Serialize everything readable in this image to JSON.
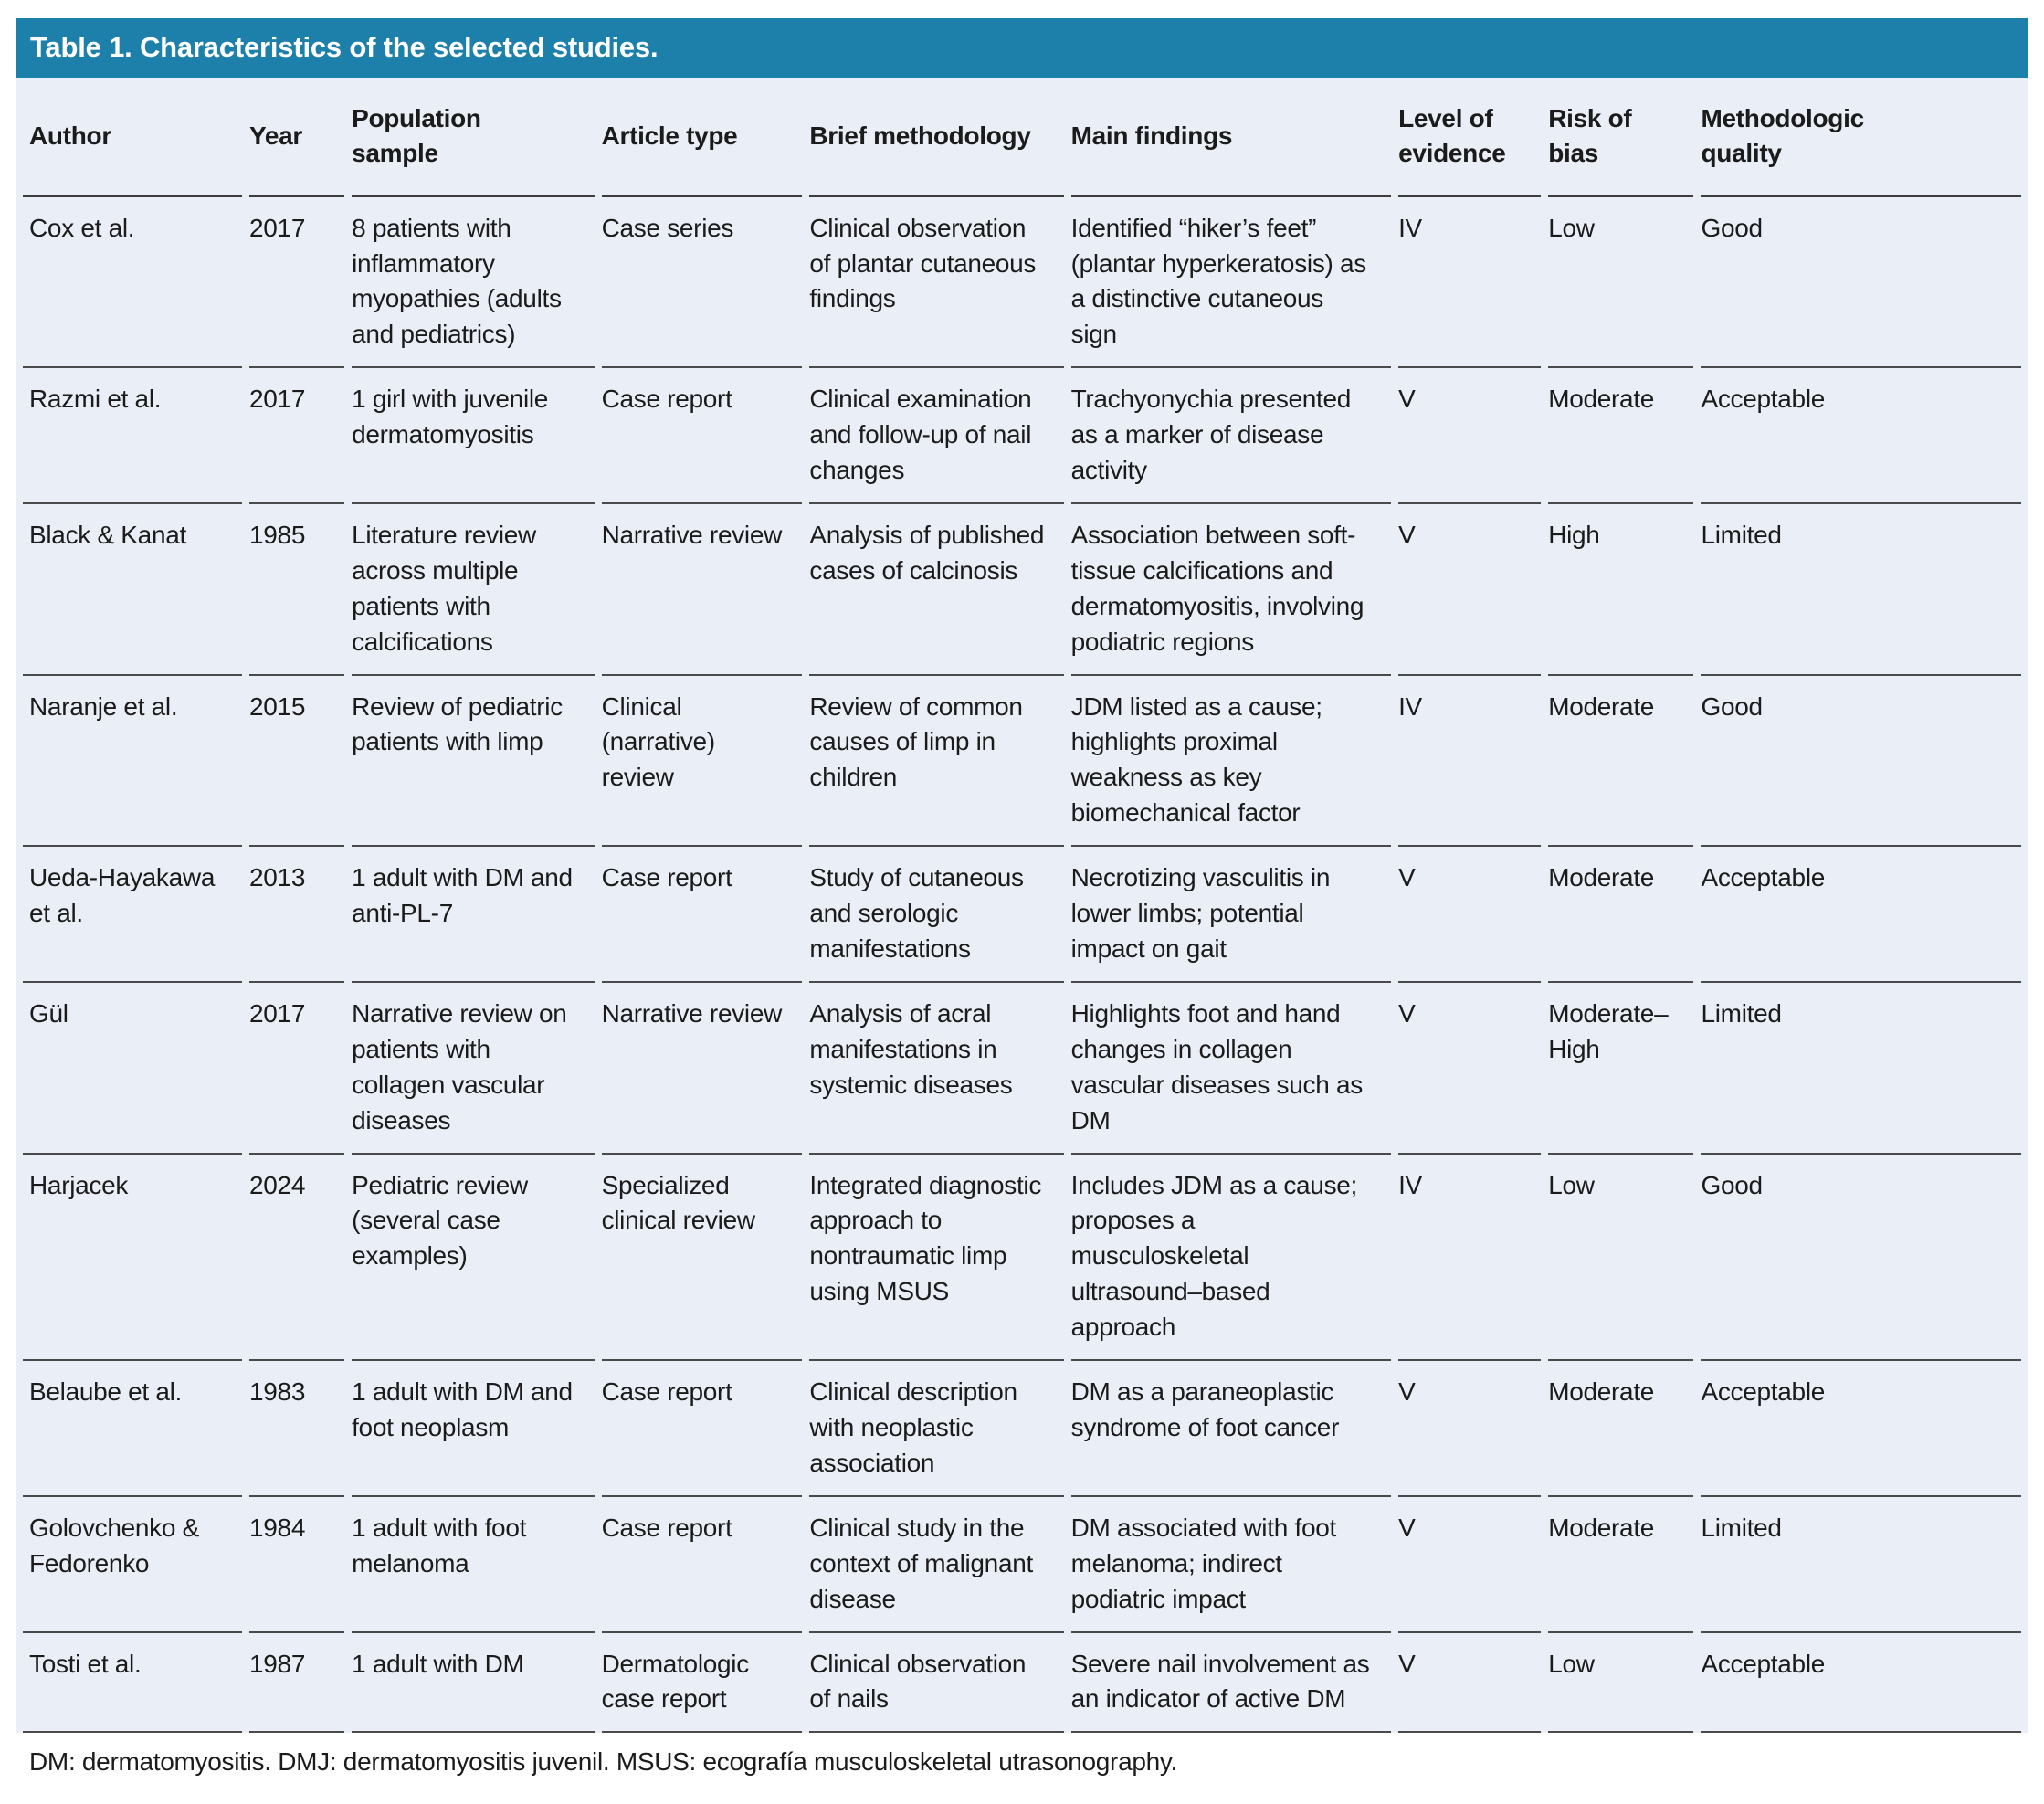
{
  "title": "Table 1. Characteristics of the selected studies.",
  "colors": {
    "title_bar": "#1c80aa",
    "row_background": "#eaeef6",
    "separator_line": "#4a4a4a",
    "header_separator_line": "#3d3d3d",
    "text": "#1b1b1b",
    "title_text": "#ffffff"
  },
  "table": {
    "columns": [
      {
        "key": "author",
        "label": "Author"
      },
      {
        "key": "year",
        "label": "Year"
      },
      {
        "key": "population",
        "label": "Population sample"
      },
      {
        "key": "article_type",
        "label": "Article type"
      },
      {
        "key": "methodology",
        "label": "Brief methodology"
      },
      {
        "key": "findings",
        "label": "Main findings"
      },
      {
        "key": "evidence",
        "label": "Level of evidence"
      },
      {
        "key": "bias",
        "label": "Risk of bias"
      },
      {
        "key": "quality",
        "label": "Methodologic quality"
      }
    ],
    "rows": [
      {
        "author": "Cox et al.",
        "year": "2017",
        "population": "8 patients with inflammatory myopathies (adults and pediatrics)",
        "article_type": "Case series",
        "methodology": "Clinical observation of plantar cutaneous findings",
        "findings": "Identified “hiker’s feet” (plantar hyperkeratosis) as a distinctive cutaneous sign",
        "evidence": "IV",
        "bias": "Low",
        "quality": "Good"
      },
      {
        "author": "Razmi et al.",
        "year": "2017",
        "population": "1 girl with juvenile dermatomyositis",
        "article_type": "Case report",
        "methodology": "Clinical examination and follow-up of nail changes",
        "findings": "Trachyonychia presented as a marker of disease activity",
        "evidence": "V",
        "bias": "Moderate",
        "quality": "Acceptable"
      },
      {
        "author": "Black & Kanat",
        "year": "1985",
        "population": "Literature review across multiple patients with calcifications",
        "article_type": "Narrative review",
        "methodology": "Analysis of published cases of calcinosis",
        "findings": "Association between soft-tissue calcifications and dermatomyositis, involving podiatric regions",
        "evidence": "V",
        "bias": "High",
        "quality": "Limited"
      },
      {
        "author": "Naranje et al.",
        "year": "2015",
        "population": "Review of pediatric patients with limp",
        "article_type": "Clinical (narrative) review",
        "methodology": "Review of common causes of limp in children",
        "findings": "JDM listed as a cause; highlights proximal weakness as key biomechanical factor",
        "evidence": "IV",
        "bias": "Moderate",
        "quality": "Good"
      },
      {
        "author": "Ueda-Hayakawa et al.",
        "year": "2013",
        "population": "1 adult with DM and anti-PL-7",
        "article_type": "Case report",
        "methodology": "Study of cutaneous and serologic manifestations",
        "findings": "Necrotizing vasculitis in lower limbs; potential impact on gait",
        "evidence": "V",
        "bias": "Moderate",
        "quality": "Acceptable"
      },
      {
        "author": "Gül",
        "year": "2017",
        "population": "Narrative review on patients with collagen vascular diseases",
        "article_type": "Narrative review",
        "methodology": "Analysis of acral manifestations in systemic diseases",
        "findings": "Highlights foot and hand changes in collagen vascular diseases such as DM",
        "evidence": "V",
        "bias": "Moderate–High",
        "quality": "Limited"
      },
      {
        "author": "Harjacek",
        "year": "2024",
        "population": "Pediatric review (several case examples)",
        "article_type": "Specialized clinical review",
        "methodology": "Integrated diagnostic approach to nontraumatic limp using MSUS",
        "findings": "Includes JDM as a cause; proposes a musculoskeletal ultrasound–based approach",
        "evidence": "IV",
        "bias": "Low",
        "quality": "Good"
      },
      {
        "author": "Belaube et al.",
        "year": "1983",
        "population": "1 adult with DM and foot neoplasm",
        "article_type": "Case report",
        "methodology": "Clinical description with neoplastic association",
        "findings": "DM as a paraneoplastic syndrome of foot cancer",
        "evidence": "V",
        "bias": "Moderate",
        "quality": "Acceptable"
      },
      {
        "author": "Golovchenko & Fedorenko",
        "year": "1984",
        "population": "1 adult with foot melanoma",
        "article_type": "Case report",
        "methodology": "Clinical study in the context of malignant disease",
        "findings": "DM associated with foot melanoma; indirect podiatric impact",
        "evidence": "V",
        "bias": "Moderate",
        "quality": "Limited"
      },
      {
        "author": "Tosti et al.",
        "year": "1987",
        "population": "1 adult with DM",
        "article_type": "Dermatologic case report",
        "methodology": "Clinical observation of nails",
        "findings": "Severe nail involvement as an indicator of active DM",
        "evidence": "V",
        "bias": "Low",
        "quality": "Acceptable"
      }
    ]
  },
  "footnote": "DM: dermatomyositis. DMJ: dermatomyositis juvenil. MSUS: ecografía musculoskeletal utrasonography."
}
